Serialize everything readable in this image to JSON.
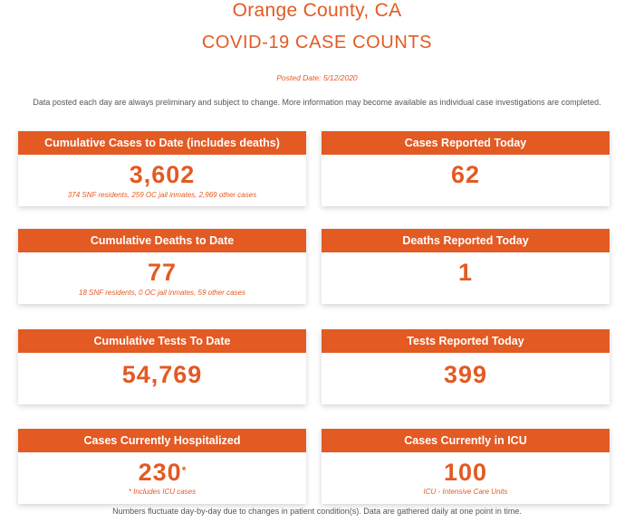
{
  "header": {
    "county": "Orange County, CA",
    "title": "COVID-19 CASE COUNTS",
    "posted_date": "Posted Date: 5/12/2020",
    "disclaimer": "Data posted each day are always preliminary and subject to change. More information may become available as individual case investigations are completed."
  },
  "cards": {
    "cumulative_cases": {
      "label": "Cumulative Cases to Date (includes deaths)",
      "value": "3,602",
      "note": "374 SNF residents, 259 OC jail inmates, 2,969 other cases"
    },
    "cases_today": {
      "label": "Cases Reported Today",
      "value": "62"
    },
    "cumulative_deaths": {
      "label": "Cumulative Deaths to Date",
      "value": "77",
      "note": "18 SNF residents, 0 OC jail inmates, 59 other cases"
    },
    "deaths_today": {
      "label": "Deaths Reported Today",
      "value": "1"
    },
    "cumulative_tests": {
      "label": "Cumulative Tests To Date",
      "value": "54,769"
    },
    "tests_today": {
      "label": "Tests Reported Today",
      "value": "399"
    },
    "hospitalized": {
      "label": "Cases Currently Hospitalized",
      "value": "230",
      "asterisk": "*",
      "note": "* Includes ICU cases"
    },
    "icu": {
      "label": "Cases Currently in ICU",
      "value": "100",
      "note": "ICU - Intensive Care Units"
    }
  },
  "footer": {
    "note": "Numbers fluctuate day-by-day due to changes in patient condition(s). Data are gathered daily at one point in time."
  },
  "colors": {
    "accent": "#e35a23",
    "body_text": "#555555"
  }
}
